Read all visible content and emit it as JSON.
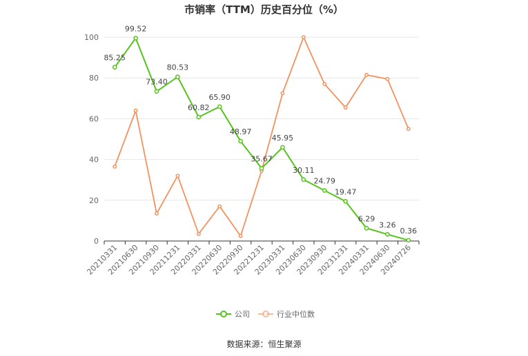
{
  "chart_data": {
    "type": "line",
    "title": "市销率（TTM）历史百分位（%）",
    "xlabel": "",
    "ylabel": "",
    "ylim": [
      0,
      100
    ],
    "yticks": [
      0,
      20,
      40,
      60,
      80,
      100
    ],
    "grid": true,
    "legend_position": "bottom",
    "categories": [
      "20210331",
      "20210630",
      "20210930",
      "20211231",
      "20220331",
      "20220630",
      "20220930",
      "20221231",
      "20230331",
      "20230630",
      "20230930",
      "20231231",
      "20240331",
      "20240630",
      "20240726"
    ],
    "series": [
      {
        "name": "公司",
        "color": "#52c41a",
        "show_labels": true,
        "values": [
          85.25,
          99.52,
          73.4,
          80.53,
          60.82,
          65.9,
          48.97,
          35.67,
          45.95,
          30.11,
          24.79,
          19.47,
          6.29,
          3.26,
          0.36
        ]
      },
      {
        "name": "行业中位数",
        "color": "#f4915f",
        "show_labels": false,
        "values": [
          36.5,
          64.0,
          13.5,
          32.0,
          3.5,
          17.0,
          2.5,
          34.5,
          72.5,
          100.0,
          77.0,
          65.5,
          81.5,
          79.5,
          55.0
        ]
      }
    ]
  },
  "legend": {
    "company": "公司",
    "industry": "行业中位数"
  },
  "source": "数据来源：恒生聚源"
}
